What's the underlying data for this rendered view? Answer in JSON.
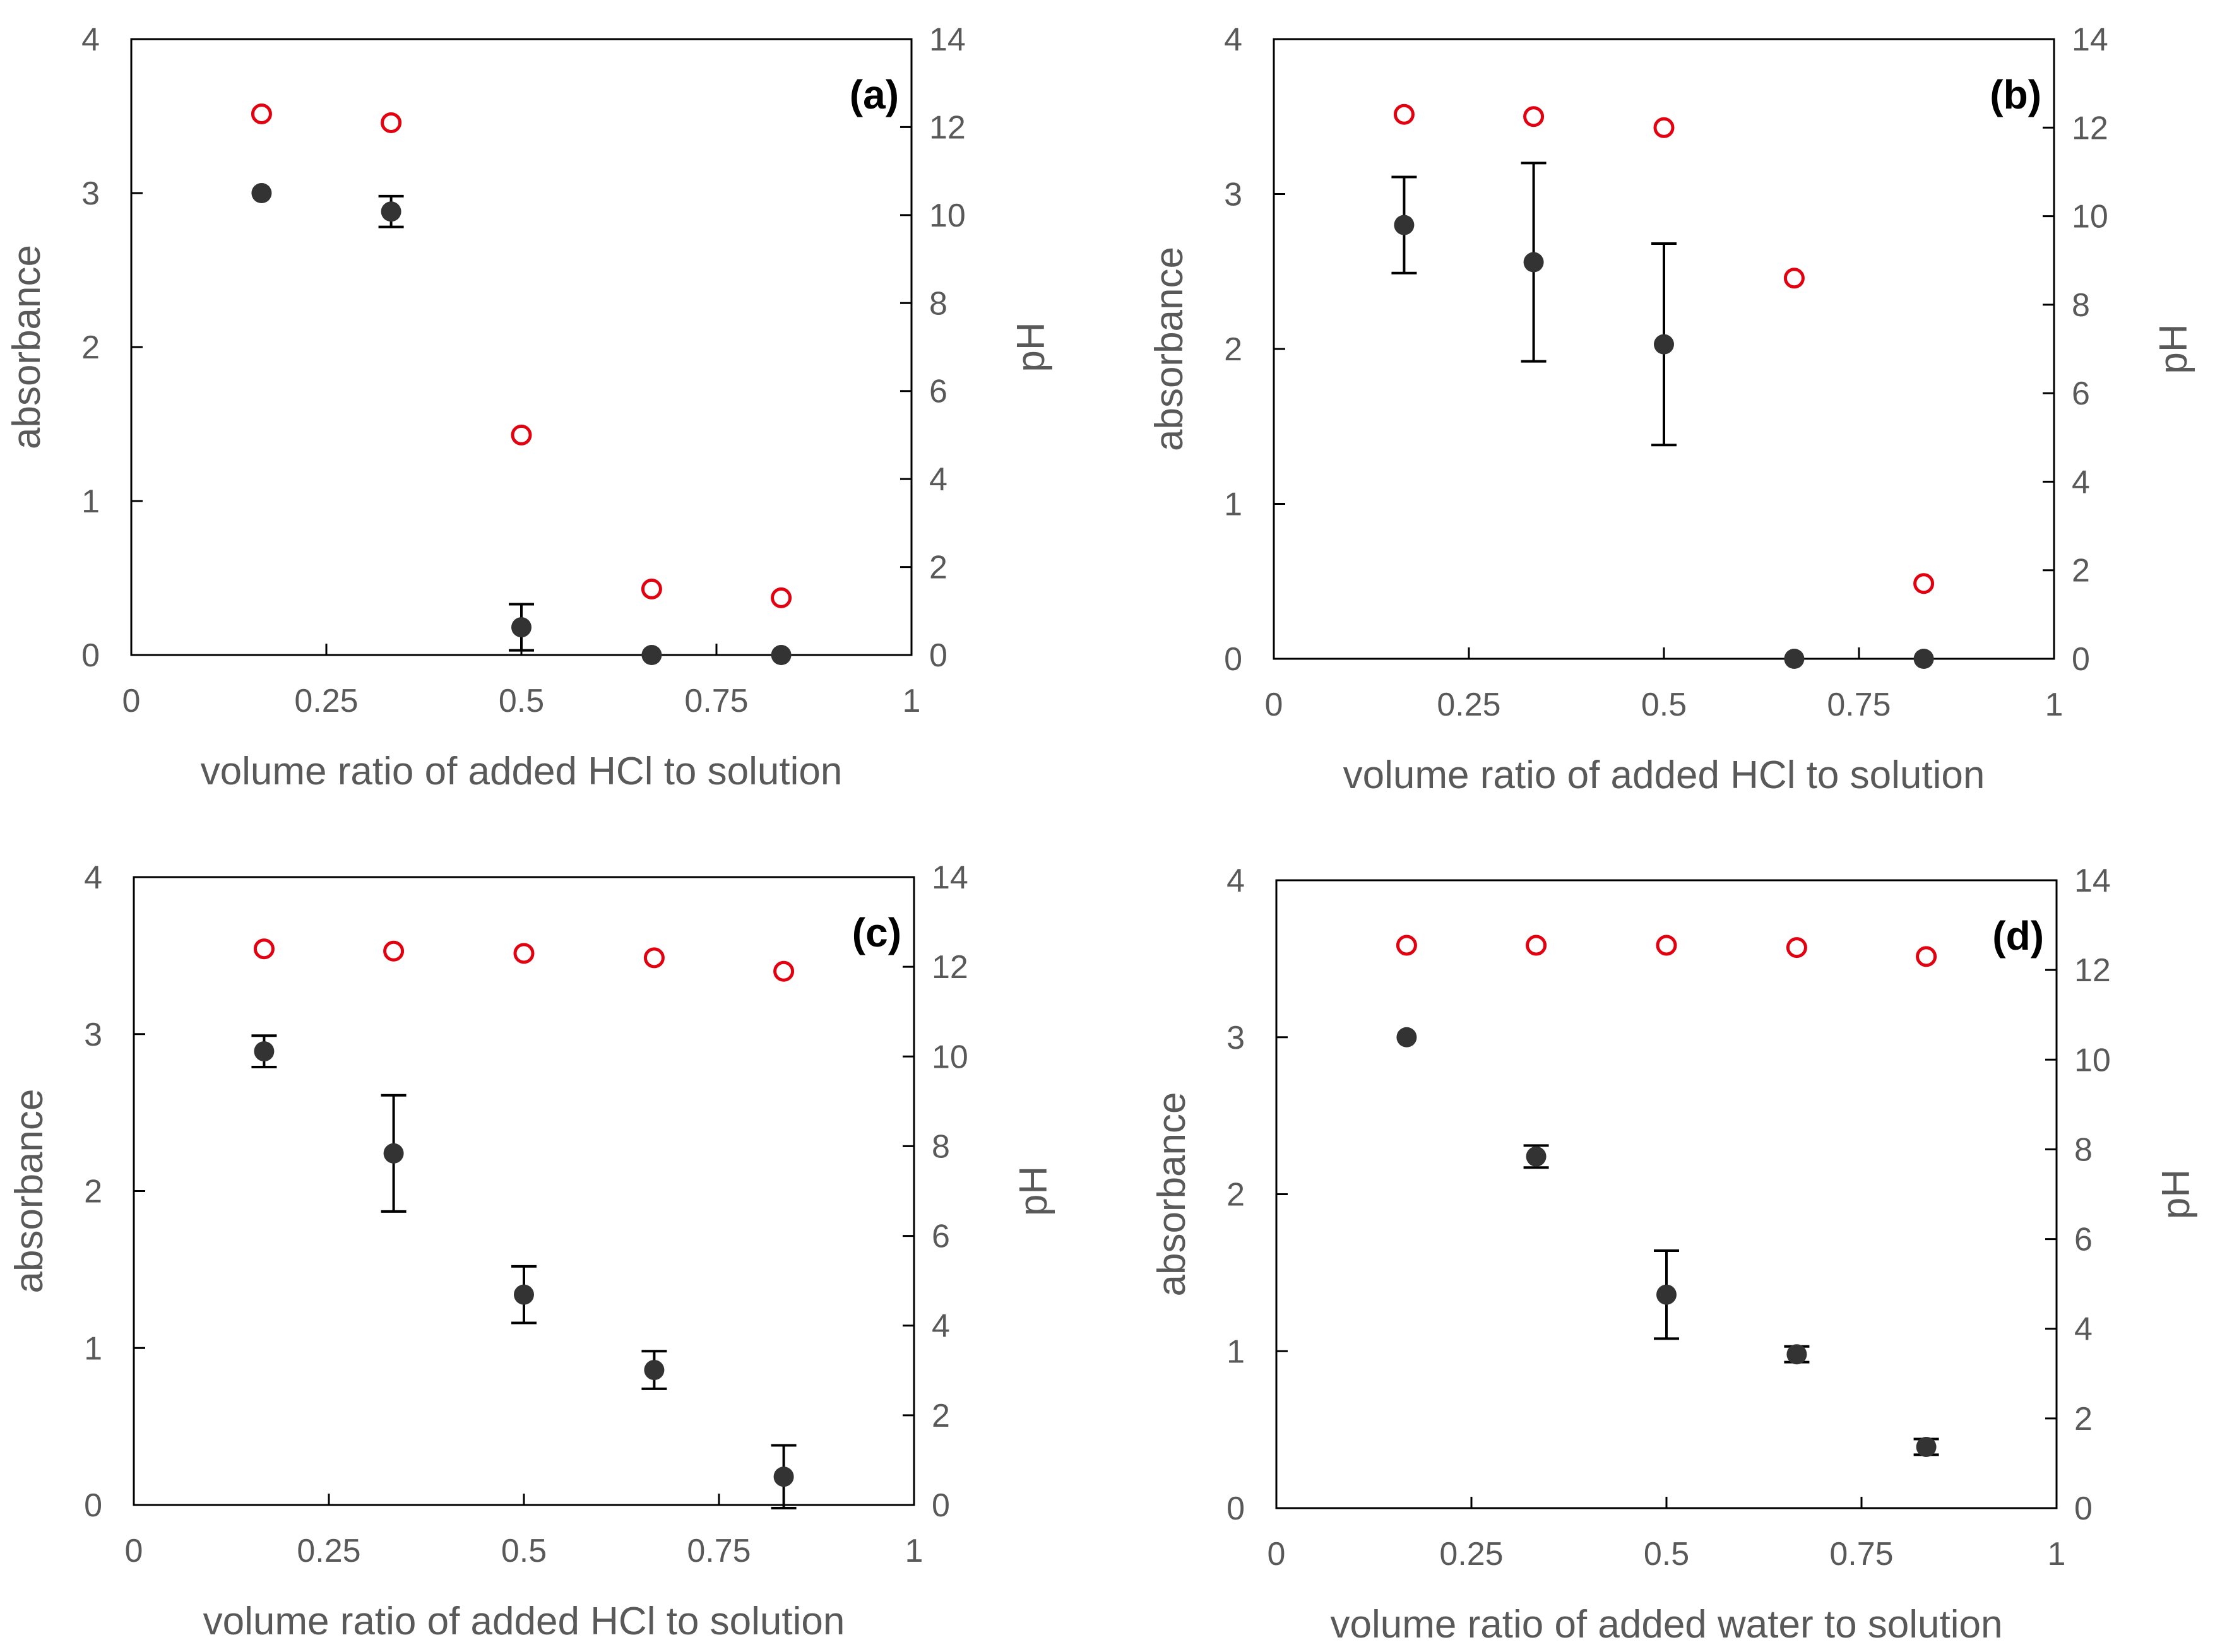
{
  "colors": {
    "absorbance_marker": "#333333",
    "ph_marker": "#e3000f",
    "axis": "#000000",
    "text": "#595959"
  },
  "chart_data": [
    {
      "type": "scatter",
      "panel_label": "(a)",
      "xlabel": "volume ratio of added HCl to solution",
      "ylabel": "absorbance",
      "y2label": "pH",
      "xlim": [
        0,
        1
      ],
      "ylim": [
        0,
        4
      ],
      "y2lim": [
        0,
        14
      ],
      "x_ticks": [
        "0",
        "0.25",
        "0.5",
        "0.75",
        "1"
      ],
      "y_ticks": [
        "0",
        "1",
        "2",
        "3",
        "4"
      ],
      "y2_ticks": [
        "0",
        "2",
        "4",
        "6",
        "8",
        "10",
        "12",
        "14"
      ],
      "series": [
        {
          "name": "absorbance",
          "axis": "left",
          "marker": "filled-circle",
          "x": [
            0.167,
            0.333,
            0.5,
            0.667,
            0.833
          ],
          "y": [
            3.0,
            2.88,
            0.18,
            0.0,
            0.0
          ],
          "error": [
            0.02,
            0.1,
            0.15,
            0.0,
            0.0
          ]
        },
        {
          "name": "pH",
          "axis": "right",
          "marker": "open-circle",
          "x": [
            0.167,
            0.333,
            0.5,
            0.667,
            0.833
          ],
          "y": [
            12.3,
            12.1,
            5.0,
            1.5,
            1.3
          ]
        }
      ]
    },
    {
      "type": "scatter",
      "panel_label": "(b)",
      "xlabel": "volume ratio of added HCl to solution",
      "ylabel": "absorbance",
      "y2label": "pH",
      "xlim": [
        0,
        1
      ],
      "ylim": [
        0,
        4
      ],
      "y2lim": [
        0,
        14
      ],
      "x_ticks": [
        "0",
        "0.25",
        "0.5",
        "0.75",
        "1"
      ],
      "y_ticks": [
        "0",
        "1",
        "2",
        "3",
        "4"
      ],
      "y2_ticks": [
        "0",
        "2",
        "4",
        "6",
        "8",
        "10",
        "12",
        "14"
      ],
      "series": [
        {
          "name": "absorbance",
          "axis": "left",
          "marker": "filled-circle",
          "x": [
            0.167,
            0.333,
            0.5,
            0.667,
            0.833
          ],
          "y": [
            2.8,
            2.56,
            2.03,
            0.0,
            0.0
          ],
          "error": [
            0.31,
            0.64,
            0.65,
            0.0,
            0.0
          ]
        },
        {
          "name": "pH",
          "axis": "right",
          "marker": "open-circle",
          "x": [
            0.167,
            0.333,
            0.5,
            0.667,
            0.833
          ],
          "y": [
            12.3,
            12.25,
            12.0,
            8.6,
            1.7
          ]
        }
      ]
    },
    {
      "type": "scatter",
      "panel_label": "(c)",
      "xlabel": "volume ratio of added HCl to solution",
      "ylabel": "absorbance",
      "y2label": "pH",
      "xlim": [
        0,
        1
      ],
      "ylim": [
        0,
        4
      ],
      "y2lim": [
        0,
        14
      ],
      "x_ticks": [
        "0",
        "0.25",
        "0.5",
        "0.75",
        "1"
      ],
      "y_ticks": [
        "0",
        "1",
        "2",
        "3",
        "4"
      ],
      "y2_ticks": [
        "0",
        "2",
        "4",
        "6",
        "8",
        "10",
        "12",
        "14"
      ],
      "series": [
        {
          "name": "absorbance",
          "axis": "left",
          "marker": "filled-circle",
          "x": [
            0.167,
            0.333,
            0.5,
            0.667,
            0.833
          ],
          "y": [
            2.89,
            2.24,
            1.34,
            0.86,
            0.18
          ],
          "error": [
            0.1,
            0.37,
            0.18,
            0.12,
            0.2
          ]
        },
        {
          "name": "pH",
          "axis": "right",
          "marker": "open-circle",
          "x": [
            0.167,
            0.333,
            0.5,
            0.667,
            0.833
          ],
          "y": [
            12.4,
            12.35,
            12.3,
            12.2,
            11.9
          ]
        }
      ]
    },
    {
      "type": "scatter",
      "panel_label": "(d)",
      "xlabel": "volume ratio of added water to solution",
      "ylabel": "absorbance",
      "y2label": "pH",
      "xlim": [
        0,
        1
      ],
      "ylim": [
        0,
        4
      ],
      "y2lim": [
        0,
        14
      ],
      "x_ticks": [
        "0",
        "0.25",
        "0.5",
        "0.75",
        "1"
      ],
      "y_ticks": [
        "0",
        "1",
        "2",
        "3",
        "4"
      ],
      "y2_ticks": [
        "0",
        "2",
        "4",
        "6",
        "8",
        "10",
        "12",
        "14"
      ],
      "series": [
        {
          "name": "absorbance",
          "axis": "left",
          "marker": "filled-circle",
          "x": [
            0.167,
            0.333,
            0.5,
            0.667,
            0.833
          ],
          "y": [
            3.0,
            2.24,
            1.36,
            0.98,
            0.39
          ],
          "error": [
            0.02,
            0.07,
            0.28,
            0.05,
            0.05
          ]
        },
        {
          "name": "pH",
          "axis": "right",
          "marker": "open-circle",
          "x": [
            0.167,
            0.333,
            0.5,
            0.667,
            0.833
          ],
          "y": [
            12.55,
            12.55,
            12.55,
            12.5,
            12.3
          ]
        }
      ]
    }
  ]
}
